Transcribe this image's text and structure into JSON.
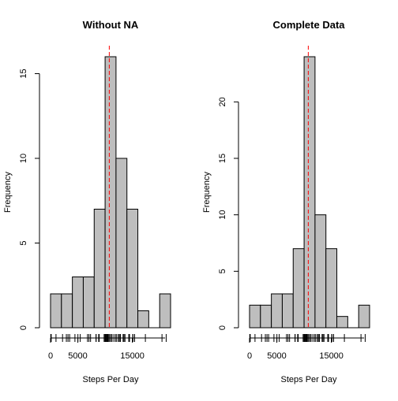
{
  "colors": {
    "bar_fill": "#bebebe",
    "bar_stroke": "#000000",
    "mean_line": "#ff0000",
    "axis": "#000000"
  },
  "chart_data": [
    {
      "type": "histogram",
      "title": "Without NA",
      "xlabel": "Steps Per Day",
      "ylabel": "Frequency",
      "bin_width": 2000,
      "bin_starts": [
        0,
        2000,
        4000,
        6000,
        8000,
        10000,
        12000,
        14000,
        16000,
        18000,
        20000
      ],
      "values": [
        2,
        2,
        3,
        3,
        7,
        16,
        10,
        7,
        1,
        0,
        2
      ],
      "xlim": [
        0,
        22000
      ],
      "ylim": [
        0,
        16
      ],
      "xticks": [
        0,
        5000,
        15000
      ],
      "yticks": [
        0,
        5,
        10,
        15
      ],
      "mean_line": 10766,
      "rug": [
        41,
        126,
        1000,
        2200,
        2900,
        3200,
        3500,
        4472,
        5018,
        5441,
        6778,
        7047,
        7336,
        8334,
        8355,
        8821,
        8841,
        8918,
        9819,
        9900,
        10056,
        10119,
        10139,
        10183,
        10304,
        10395,
        10439,
        10571,
        10600,
        10765,
        11015,
        11162,
        11458,
        11829,
        11834,
        12116,
        12426,
        12608,
        12787,
        12811,
        13294,
        13452,
        13460,
        13646,
        14339,
        14478,
        15084,
        15098,
        15110,
        15414,
        17382,
        20427,
        21194
      ]
    },
    {
      "type": "histogram",
      "title": "Complete Data",
      "xlabel": "Steps Per Day",
      "ylabel": "Frequency",
      "bin_width": 2000,
      "bin_starts": [
        0,
        2000,
        4000,
        6000,
        8000,
        10000,
        12000,
        14000,
        16000,
        18000,
        20000
      ],
      "values": [
        2,
        2,
        3,
        3,
        7,
        24,
        10,
        7,
        1,
        0,
        2
      ],
      "xlim": [
        0,
        22000
      ],
      "ylim": [
        0,
        24
      ],
      "xticks": [
        0,
        5000,
        15000
      ],
      "yticks": [
        0,
        5,
        10,
        15,
        20
      ],
      "mean_line": 10766,
      "rug": [
        41,
        126,
        1000,
        2200,
        2900,
        3200,
        3500,
        4472,
        5018,
        5441,
        6778,
        7047,
        7336,
        8334,
        8355,
        8821,
        8841,
        8918,
        9819,
        9900,
        10056,
        10119,
        10139,
        10183,
        10304,
        10395,
        10439,
        10571,
        10600,
        10766,
        11015,
        11162,
        11458,
        11829,
        11834,
        12116,
        12426,
        12608,
        12787,
        12811,
        13294,
        13452,
        13460,
        13646,
        14339,
        14478,
        15084,
        15098,
        15110,
        15414,
        17382,
        20427,
        21194
      ]
    }
  ]
}
